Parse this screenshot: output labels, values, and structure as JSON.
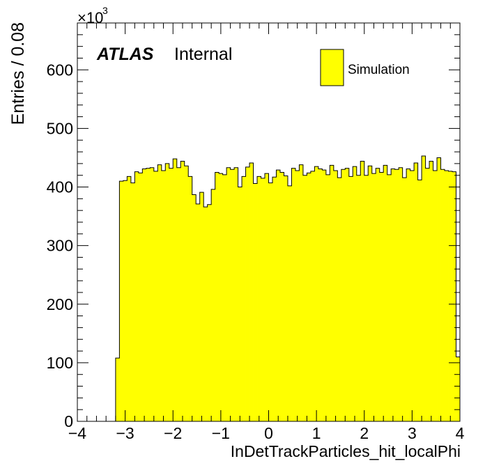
{
  "chart_data": {
    "type": "histogram",
    "title": "",
    "xlabel": "InDetTrackParticles_hit_localPhi",
    "ylabel": "Entries / 0.08",
    "y_multiplier_label": "×10",
    "y_multiplier_exponent": "3",
    "xlim": [
      -4,
      4
    ],
    "ylim": [
      0,
      680
    ],
    "y_unit_scale": 1000,
    "x_ticks": [
      -4,
      -3,
      -2,
      -1,
      0,
      1,
      2,
      3,
      4
    ],
    "x_tick_labels": [
      "−4",
      "−3",
      "−2",
      "−1",
      "0",
      "1",
      "2",
      "3",
      "4"
    ],
    "y_ticks": [
      0,
      100,
      200,
      300,
      400,
      500,
      600
    ],
    "y_tick_labels": [
      "0",
      "100",
      "200",
      "300",
      "400",
      "500",
      "600"
    ],
    "bin_width": 0.08,
    "bin_start": -3.2,
    "series": [
      {
        "name": "Simulation",
        "color": "#ffff00",
        "values": [
          108,
          410,
          411,
          418,
          407,
          426,
          424,
          431,
          432,
          433,
          427,
          438,
          428,
          440,
          432,
          448,
          433,
          444,
          436,
          418,
          387,
          371,
          391,
          366,
          370,
          396,
          425,
          423,
          421,
          433,
          430,
          433,
          400,
          418,
          434,
          441,
          406,
          418,
          415,
          423,
          407,
          417,
          429,
          425,
          419,
          402,
          432,
          428,
          438,
          420,
          424,
          427,
          435,
          431,
          429,
          421,
          437,
          428,
          416,
          430,
          432,
          418,
          435,
          420,
          444,
          420,
          436,
          423,
          432,
          425,
          437,
          421,
          431,
          430,
          433,
          416,
          431,
          428,
          441,
          412,
          453,
          432,
          444,
          428,
          450,
          430,
          428,
          427,
          426,
          110
        ]
      }
    ],
    "legend": {
      "position": "top-right",
      "entries": [
        "Simulation"
      ]
    },
    "annotations": {
      "experiment": "ATLAS",
      "status": "Internal"
    },
    "fill_color": "#ffff00",
    "line_color": "#000000",
    "grid": false
  }
}
